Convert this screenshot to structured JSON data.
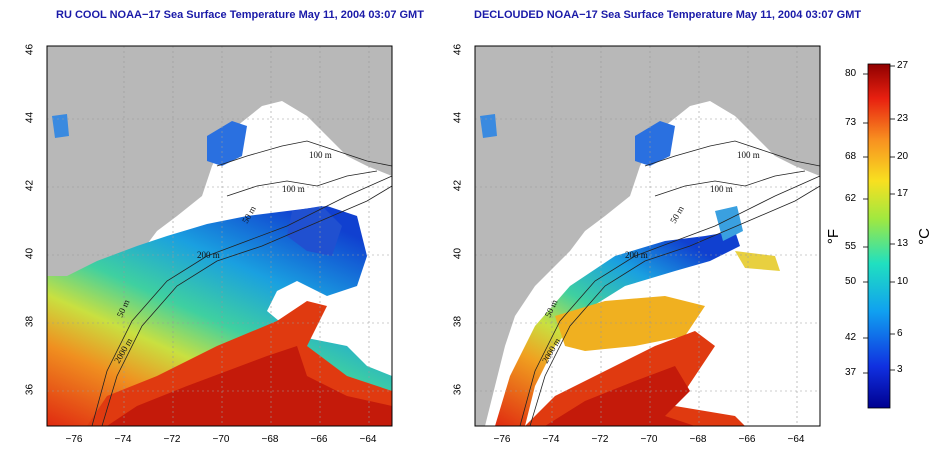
{
  "titles": {
    "left": "RU COOL NOAA−17 Sea Surface Temperature May 11, 2004 03:07 GMT",
    "right": "DECLOUDED NOAA−17 Sea Surface Temperature May 11, 2004 03:07 GMT"
  },
  "axes": {
    "x_ticks": [
      "−76",
      "−74",
      "−72",
      "−70",
      "−68",
      "−66",
      "−64"
    ],
    "y_ticks": [
      "36",
      "38",
      "40",
      "42",
      "44",
      "46"
    ]
  },
  "contour_labels": [
    "100 m",
    "100 m",
    "50 m",
    "200 m",
    "50 m",
    "2000 m"
  ],
  "colorbar": {
    "fahrenheit_unit": "°F",
    "celsius_unit": "°C",
    "fahrenheit_ticks": [
      "80",
      "73",
      "68",
      "62",
      "55",
      "50",
      "42",
      "37"
    ],
    "celsius_ticks": [
      "27",
      "23",
      "20",
      "17",
      "13",
      "10",
      "6",
      "3"
    ]
  },
  "colors": {
    "title": "#1a1aa8",
    "land": "#b8b8b8",
    "ocean_missing": "#ffffff"
  }
}
